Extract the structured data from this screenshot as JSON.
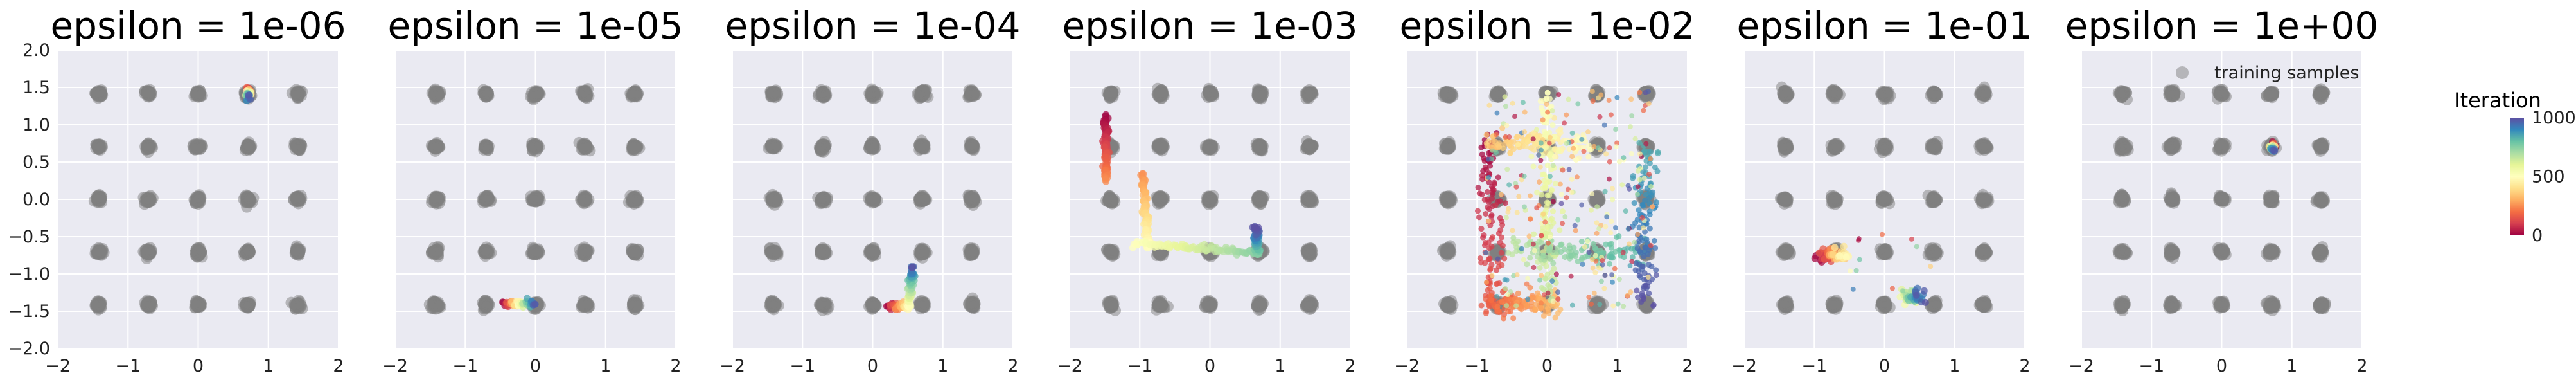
{
  "chart_data": {
    "type": "scatter",
    "panel_titles": [
      "epsilon = 1e-06",
      "epsilon = 1e-05",
      "epsilon = 1e-04",
      "epsilon = 1e-03",
      "epsilon = 1e-02",
      "epsilon = 1e-01",
      "epsilon = 1e+00"
    ],
    "xlim": [
      -2,
      2
    ],
    "ylim": [
      -2,
      2
    ],
    "xticks": [
      "−2",
      "−1",
      "0",
      "1",
      "2"
    ],
    "yticks": [
      "2.0",
      "1.5",
      "1.0",
      "0.5",
      "0.0",
      "−0.5",
      "−1.0",
      "−1.5",
      "−2.0"
    ],
    "grid": true,
    "background_color": "#eaeaf2",
    "training_samples": {
      "label": "training samples",
      "color": "#808080",
      "x_centers": [
        -1.414,
        -0.707,
        0,
        0.707,
        1.414
      ],
      "y_centers": [
        -1.414,
        -0.707,
        0,
        0.707,
        1.414
      ],
      "legend_panel": 6,
      "legend_position": "upper-right"
    },
    "colorbar": {
      "label": "Iteration",
      "ticks": [
        "1000",
        "500",
        "0"
      ],
      "range": [
        0,
        1000
      ],
      "colormap": "Spectral",
      "colors": [
        "#9e0142",
        "#d53e4f",
        "#f46d43",
        "#fdae61",
        "#fee08b",
        "#ffffbf",
        "#e6f598",
        "#abdda4",
        "#66c2a5",
        "#3288bd",
        "#5e4fa2"
      ]
    },
    "trajectories": [
      {
        "panel": 0,
        "segments": [
          {
            "from": [
              0.72,
              1.47
            ],
            "to": [
              0.72,
              1.37
            ]
          }
        ]
      },
      {
        "panel": 1,
        "segments": [
          {
            "from": [
              -0.45,
              -1.4
            ],
            "to": [
              -0.02,
              -1.4
            ]
          }
        ]
      },
      {
        "panel": 2,
        "segments": [
          {
            "from": [
              0.22,
              -1.43
            ],
            "to": [
              0.52,
              -1.43
            ]
          },
          {
            "from": [
              0.52,
              -1.43
            ],
            "to": [
              0.57,
              -0.88
            ]
          }
        ]
      },
      {
        "panel": 3,
        "segments": [
          {
            "from": [
              -1.48,
              1.1
            ],
            "to": [
              -1.48,
              0.25
            ]
          },
          {
            "from": [
              -0.95,
              0.33
            ],
            "to": [
              -0.88,
              -0.65
            ]
          },
          {
            "from": [
              -1.1,
              -0.58
            ],
            "to": [
              0.67,
              -0.72
            ]
          },
          {
            "from": [
              0.67,
              -0.72
            ],
            "to": [
              0.67,
              -0.38
            ]
          }
        ]
      },
      {
        "panel": 4,
        "segments": [
          {
            "from": [
              -0.8,
              0.8
            ],
            "to": [
              -0.8,
              -1.45
            ]
          },
          {
            "from": [
              -0.8,
              -1.4
            ],
            "to": [
              0.1,
              -1.4
            ]
          },
          {
            "from": [
              -0.8,
              0.75
            ],
            "to": [
              0.55,
              0.75
            ]
          },
          {
            "from": [
              0.0,
              1.4
            ],
            "to": [
              0.0,
              -1.3
            ]
          },
          {
            "from": [
              -0.5,
              -0.7
            ],
            "to": [
              1.35,
              -0.7
            ]
          },
          {
            "from": [
              1.4,
              0.7
            ],
            "to": [
              1.4,
              -1.4
            ]
          }
        ]
      },
      {
        "panel": 5,
        "segments": [
          {
            "from": [
              -0.95,
              -0.75
            ],
            "to": [
              -0.55,
              -0.75
            ]
          },
          {
            "from": [
              0.3,
              -1.3
            ],
            "to": [
              0.5,
              -1.3
            ]
          }
        ]
      },
      {
        "panel": 6,
        "segments": [
          {
            "from": [
              0.72,
              0.72
            ],
            "to": [
              0.72,
              0.66
            ]
          }
        ]
      }
    ]
  }
}
